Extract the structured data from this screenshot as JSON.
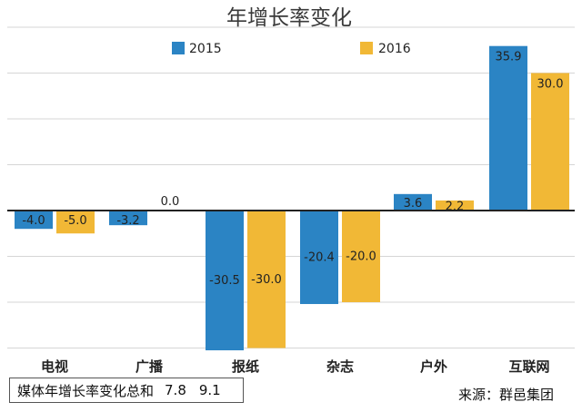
{
  "chart_data": {
    "type": "bar",
    "title": "年增长率变化",
    "categories": [
      "电视",
      "广播",
      "报纸",
      "杂志",
      "户外",
      "互联网"
    ],
    "series": [
      {
        "name": "2015",
        "color": "#2b84c4",
        "values": [
          -4.0,
          -3.2,
          -30.5,
          -20.4,
          3.6,
          35.9
        ]
      },
      {
        "name": "2016",
        "color": "#f1b836",
        "values": [
          -5.0,
          0.0,
          -30.0,
          -20.0,
          2.2,
          30.0
        ]
      }
    ],
    "value_labels": {
      "2015": [
        "-4.0",
        "-3.2",
        "-30.5",
        "-20.4",
        "3.6",
        "35.9"
      ],
      "2016": [
        "-5.0",
        "0.0",
        "-30.0",
        "-20.0",
        "2.2",
        "30.0"
      ]
    },
    "ylim": [
      -35,
      40
    ],
    "grid": true,
    "legend": "top"
  },
  "summary": {
    "label": "媒体年增长率变化总和",
    "value_2015": "7.8",
    "value_2016": "9.1"
  },
  "source": "来源：群邑集团"
}
